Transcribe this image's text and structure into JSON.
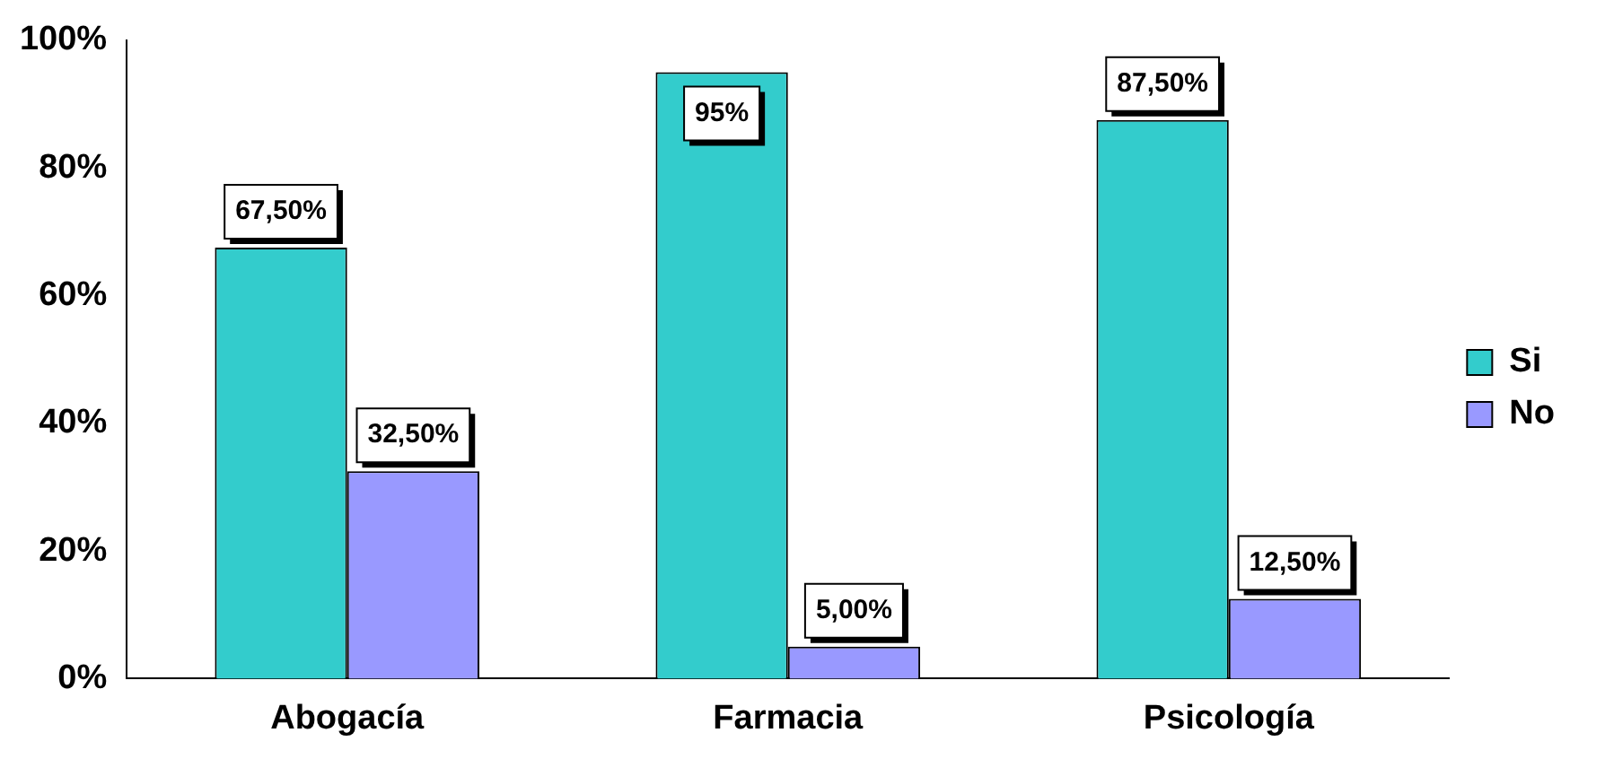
{
  "chart_data": {
    "type": "bar",
    "categories": [
      "Abogacía",
      "Farmacia",
      "Psicología"
    ],
    "series": [
      {
        "name": "Si",
        "color": "#33cccc",
        "values": [
          67.5,
          95,
          87.5
        ],
        "value_labels": [
          "67,50%",
          "95%",
          "87,50%"
        ]
      },
      {
        "name": "No",
        "color": "#9999ff",
        "values": [
          32.5,
          5,
          12.5
        ],
        "value_labels": [
          "32,50%",
          "5,00%",
          "12,50%"
        ]
      }
    ],
    "ylim": [
      0,
      100
    ],
    "yticks": [
      {
        "value": 0,
        "label": "0%"
      },
      {
        "value": 20,
        "label": "20%"
      },
      {
        "value": 40,
        "label": "40%"
      },
      {
        "value": 60,
        "label": "60%"
      },
      {
        "value": 80,
        "label": "80%"
      },
      {
        "value": 100,
        "label": "100%"
      }
    ],
    "grid": false,
    "legend": "right"
  }
}
